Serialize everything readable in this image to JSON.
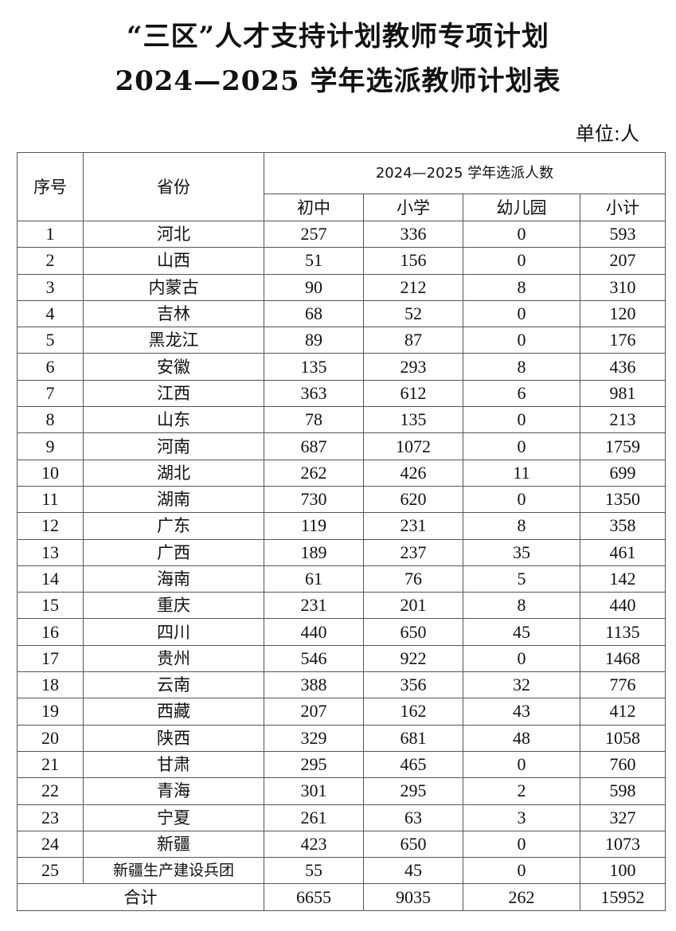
{
  "title_line1": "“三区”人才支持计划教师专项计划",
  "title_line2": "2024—2025 学年选派教师计划表",
  "unit": "单位:人",
  "table": {
    "headers": {
      "index": "序号",
      "province": "省份",
      "group": "2024—2025 学年选派人数",
      "columns": [
        "初中",
        "小学",
        "幼儿园",
        "小计"
      ]
    },
    "rows": [
      [
        "1",
        "河北",
        "257",
        "336",
        "0",
        "593"
      ],
      [
        "2",
        "山西",
        "51",
        "156",
        "0",
        "207"
      ],
      [
        "3",
        "内蒙古",
        "90",
        "212",
        "8",
        "310"
      ],
      [
        "4",
        "吉林",
        "68",
        "52",
        "0",
        "120"
      ],
      [
        "5",
        "黑龙江",
        "89",
        "87",
        "0",
        "176"
      ],
      [
        "6",
        "安徽",
        "135",
        "293",
        "8",
        "436"
      ],
      [
        "7",
        "江西",
        "363",
        "612",
        "6",
        "981"
      ],
      [
        "8",
        "山东",
        "78",
        "135",
        "0",
        "213"
      ],
      [
        "9",
        "河南",
        "687",
        "1072",
        "0",
        "1759"
      ],
      [
        "10",
        "湖北",
        "262",
        "426",
        "11",
        "699"
      ],
      [
        "11",
        "湖南",
        "730",
        "620",
        "0",
        "1350"
      ],
      [
        "12",
        "广东",
        "119",
        "231",
        "8",
        "358"
      ],
      [
        "13",
        "广西",
        "189",
        "237",
        "35",
        "461"
      ],
      [
        "14",
        "海南",
        "61",
        "76",
        "5",
        "142"
      ],
      [
        "15",
        "重庆",
        "231",
        "201",
        "8",
        "440"
      ],
      [
        "16",
        "四川",
        "440",
        "650",
        "45",
        "1135"
      ],
      [
        "17",
        "贵州",
        "546",
        "922",
        "0",
        "1468"
      ],
      [
        "18",
        "云南",
        "388",
        "356",
        "32",
        "776"
      ],
      [
        "19",
        "西藏",
        "207",
        "162",
        "43",
        "412"
      ],
      [
        "20",
        "陕西",
        "329",
        "681",
        "48",
        "1058"
      ],
      [
        "21",
        "甘肃",
        "295",
        "465",
        "0",
        "760"
      ],
      [
        "22",
        "青海",
        "301",
        "295",
        "2",
        "598"
      ],
      [
        "23",
        "宁夏",
        "261",
        "63",
        "3",
        "327"
      ],
      [
        "24",
        "新疆",
        "423",
        "650",
        "0",
        "1073"
      ],
      [
        "25",
        "新疆生产建设兵团",
        "55",
        "45",
        "0",
        "100"
      ]
    ],
    "total": {
      "label": "合计",
      "values": [
        "6655",
        "9035",
        "262",
        "15952"
      ]
    }
  }
}
